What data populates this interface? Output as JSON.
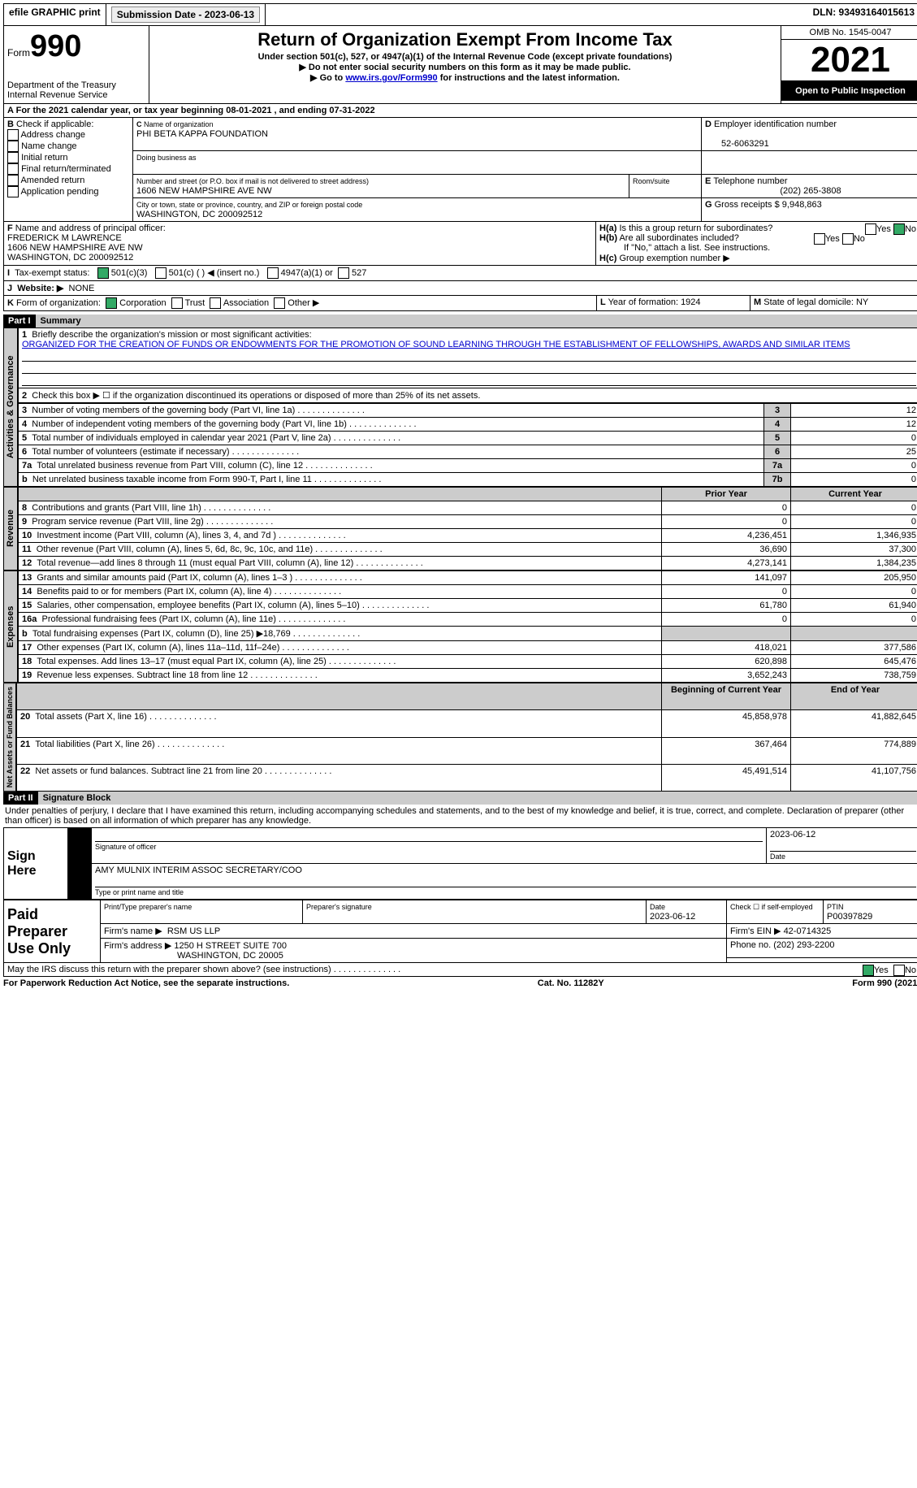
{
  "topbar": {
    "efile": "efile GRAPHIC print",
    "submission_label": "Submission Date - 2023-06-13",
    "dln_label": "DLN: 93493164015613"
  },
  "header": {
    "form_prefix": "Form",
    "form_no": "990",
    "dept": "Department of the Treasury",
    "irs": "Internal Revenue Service",
    "title": "Return of Organization Exempt From Income Tax",
    "sub1": "Under section 501(c), 527, or 4947(a)(1) of the Internal Revenue Code (except private foundations)",
    "sub2": "▶ Do not enter social security numbers on this form as it may be made public.",
    "sub3_pre": "▶ Go to ",
    "sub3_link": "www.irs.gov/Form990",
    "sub3_post": " for instructions and the latest information.",
    "omb": "OMB No. 1545-0047",
    "year": "2021",
    "open": "Open to Public Inspection"
  },
  "A": {
    "text": "For the 2021 calendar year, or tax year beginning 08-01-2021   , and ending 07-31-2022"
  },
  "B": {
    "label": "Check if applicable:",
    "opts": [
      "Address change",
      "Name change",
      "Initial return",
      "Final return/terminated",
      "Amended return",
      "Application pending"
    ]
  },
  "C": {
    "name_lbl": "Name of organization",
    "name": "PHI BETA KAPPA FOUNDATION",
    "dba_lbl": "Doing business as",
    "street_lbl": "Number and street (or P.O. box if mail is not delivered to street address)",
    "room_lbl": "Room/suite",
    "street": "1606 NEW HAMPSHIRE AVE NW",
    "city_lbl": "City or town, state or province, country, and ZIP or foreign postal code",
    "city": "WASHINGTON, DC  200092512"
  },
  "D": {
    "lbl": "Employer identification number",
    "val": "52-6063291"
  },
  "E": {
    "lbl": "Telephone number",
    "val": "(202) 265-3808"
  },
  "G": {
    "lbl": "Gross receipts $",
    "val": "9,948,863"
  },
  "F": {
    "lbl": "Name and address of principal officer:",
    "name": "FREDERICK M LAWRENCE",
    "addr1": "1606 NEW HAMPSHIRE AVE NW",
    "addr2": "WASHINGTON, DC  200092512"
  },
  "H": {
    "a": "Is this a group return for subordinates?",
    "b": "Are all subordinates included?",
    "b2": "If \"No,\" attach a list. See instructions.",
    "c": "Group exemption number ▶"
  },
  "I": {
    "lbl": "Tax-exempt status:",
    "o1": "501(c)(3)",
    "o2": "501(c) (  ) ◀ (insert no.)",
    "o3": "4947(a)(1) or",
    "o4": "527"
  },
  "J": {
    "lbl": "Website: ▶",
    "val": "NONE"
  },
  "K": {
    "lbl": "Form of organization:",
    "o1": "Corporation",
    "o2": "Trust",
    "o3": "Association",
    "o4": "Other ▶"
  },
  "L": {
    "lbl": "Year of formation:",
    "val": "1924"
  },
  "M": {
    "lbl": "State of legal domicile:",
    "val": "NY"
  },
  "part1": {
    "hdr": "Part I",
    "title": "Summary",
    "l1_lbl": "Briefly describe the organization's mission or most significant activities:",
    "l1_txt": "ORGANIZED FOR THE CREATION OF FUNDS OR ENDOWMENTS FOR THE PROMOTION OF SOUND LEARNING THROUGH THE ESTABLISHMENT OF FELLOWSHIPS, AWARDS AND SIMILAR ITEMS",
    "l2": "Check this box ▶ ☐ if the organization discontinued its operations or disposed of more than 25% of its net assets.",
    "rows_gov": [
      {
        "n": "3",
        "lbl": "Number of voting members of the governing body (Part VI, line 1a)",
        "box": "3",
        "v": "12"
      },
      {
        "n": "4",
        "lbl": "Number of independent voting members of the governing body (Part VI, line 1b)",
        "box": "4",
        "v": "12"
      },
      {
        "n": "5",
        "lbl": "Total number of individuals employed in calendar year 2021 (Part V, line 2a)",
        "box": "5",
        "v": "0"
      },
      {
        "n": "6",
        "lbl": "Total number of volunteers (estimate if necessary)",
        "box": "6",
        "v": "25"
      },
      {
        "n": "7a",
        "lbl": "Total unrelated business revenue from Part VIII, column (C), line 12",
        "box": "7a",
        "v": "0"
      },
      {
        "n": "b",
        "lbl": "Net unrelated business taxable income from Form 990-T, Part I, line 11",
        "box": "7b",
        "v": "0"
      }
    ],
    "col_py": "Prior Year",
    "col_cy": "Current Year",
    "rows_rev": [
      {
        "n": "8",
        "lbl": "Contributions and grants (Part VIII, line 1h)",
        "py": "0",
        "cy": "0"
      },
      {
        "n": "9",
        "lbl": "Program service revenue (Part VIII, line 2g)",
        "py": "0",
        "cy": "0"
      },
      {
        "n": "10",
        "lbl": "Investment income (Part VIII, column (A), lines 3, 4, and 7d )",
        "py": "4,236,451",
        "cy": "1,346,935"
      },
      {
        "n": "11",
        "lbl": "Other revenue (Part VIII, column (A), lines 5, 6d, 8c, 9c, 10c, and 11e)",
        "py": "36,690",
        "cy": "37,300"
      },
      {
        "n": "12",
        "lbl": "Total revenue—add lines 8 through 11 (must equal Part VIII, column (A), line 12)",
        "py": "4,273,141",
        "cy": "1,384,235"
      }
    ],
    "rows_exp": [
      {
        "n": "13",
        "lbl": "Grants and similar amounts paid (Part IX, column (A), lines 1–3 )",
        "py": "141,097",
        "cy": "205,950"
      },
      {
        "n": "14",
        "lbl": "Benefits paid to or for members (Part IX, column (A), line 4)",
        "py": "0",
        "cy": "0"
      },
      {
        "n": "15",
        "lbl": "Salaries, other compensation, employee benefits (Part IX, column (A), lines 5–10)",
        "py": "61,780",
        "cy": "61,940"
      },
      {
        "n": "16a",
        "lbl": "Professional fundraising fees (Part IX, column (A), line 11e)",
        "py": "0",
        "cy": "0"
      },
      {
        "n": "b",
        "lbl": "Total fundraising expenses (Part IX, column (D), line 25) ▶18,769",
        "py": "",
        "cy": "",
        "shade": true
      },
      {
        "n": "17",
        "lbl": "Other expenses (Part IX, column (A), lines 11a–11d, 11f–24e)",
        "py": "418,021",
        "cy": "377,586"
      },
      {
        "n": "18",
        "lbl": "Total expenses. Add lines 13–17 (must equal Part IX, column (A), line 25)",
        "py": "620,898",
        "cy": "645,476"
      },
      {
        "n": "19",
        "lbl": "Revenue less expenses. Subtract line 18 from line 12",
        "py": "3,652,243",
        "cy": "738,759"
      }
    ],
    "col_bcy": "Beginning of Current Year",
    "col_ey": "End of Year",
    "rows_net": [
      {
        "n": "20",
        "lbl": "Total assets (Part X, line 16)",
        "py": "45,858,978",
        "cy": "41,882,645"
      },
      {
        "n": "21",
        "lbl": "Total liabilities (Part X, line 26)",
        "py": "367,464",
        "cy": "774,889"
      },
      {
        "n": "22",
        "lbl": "Net assets or fund balances. Subtract line 21 from line 20",
        "py": "45,491,514",
        "cy": "41,107,756"
      }
    ],
    "vtabs": {
      "gov": "Activities & Governance",
      "rev": "Revenue",
      "exp": "Expenses",
      "net": "Net Assets or Fund Balances"
    }
  },
  "part2": {
    "hdr": "Part II",
    "title": "Signature Block",
    "decl": "Under penalties of perjury, I declare that I have examined this return, including accompanying schedules and statements, and to the best of my knowledge and belief, it is true, correct, and complete. Declaration of preparer (other than officer) is based on all information of which preparer has any knowledge.",
    "sign_here": "Sign Here",
    "sig_officer": "Signature of officer",
    "sig_date": "2023-06-12",
    "date_lbl": "Date",
    "officer_name": "AMY MULNIX  INTERIM ASSOC SECRETARY/COO",
    "officer_type": "Type or print name and title",
    "paid": "Paid Preparer Use Only",
    "pp_name": "Print/Type preparer's name",
    "pp_sig": "Preparer's signature",
    "pp_date_lbl": "Date",
    "pp_date": "2023-06-12",
    "pp_self": "Check ☐ if self-employed",
    "ptin_lbl": "PTIN",
    "ptin": "P00397829",
    "firm_name_lbl": "Firm's name   ▶",
    "firm_name": "RSM US LLP",
    "firm_ein_lbl": "Firm's EIN ▶",
    "firm_ein": "42-0714325",
    "firm_addr_lbl": "Firm's address ▶",
    "firm_addr1": "1250 H STREET SUITE 700",
    "firm_addr2": "WASHINGTON, DC  20005",
    "firm_phone_lbl": "Phone no.",
    "firm_phone": "(202) 293-2200",
    "discuss": "May the IRS discuss this return with the preparer shown above? (see instructions)",
    "yes": "Yes",
    "no": "No"
  },
  "footer": {
    "left": "For Paperwork Reduction Act Notice, see the separate instructions.",
    "mid": "Cat. No. 11282Y",
    "right": "Form 990 (2021)"
  }
}
